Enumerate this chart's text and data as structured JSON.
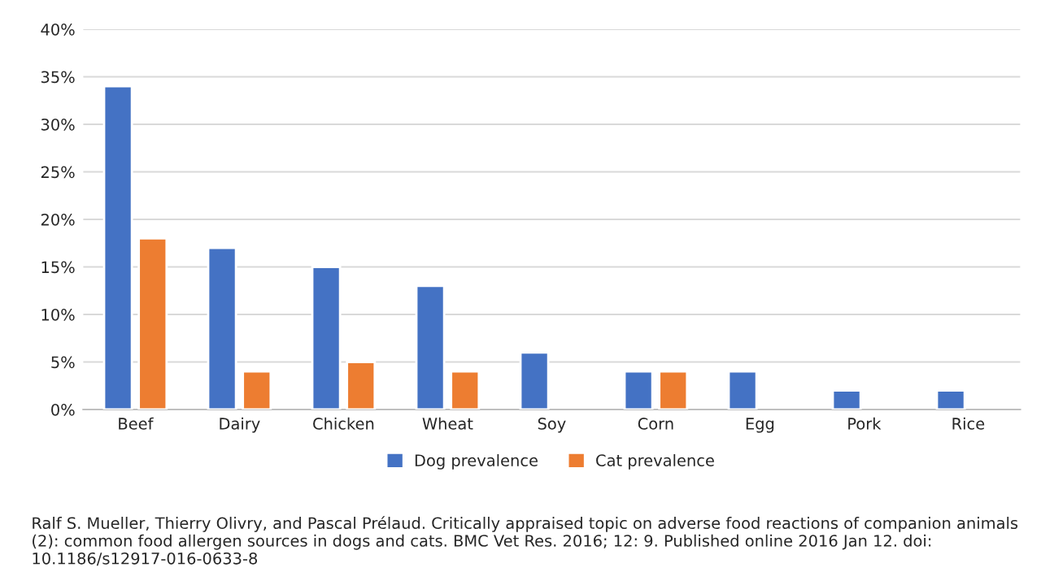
{
  "chart_data": {
    "type": "bar",
    "categories": [
      "Beef",
      "Dairy",
      "Chicken",
      "Wheat",
      "Soy",
      "Corn",
      "Egg",
      "Pork",
      "Rice"
    ],
    "series": [
      {
        "name": "Dog prevalence",
        "color": "#4472c4",
        "values": [
          34,
          17,
          15,
          13,
          6,
          4,
          4,
          2,
          2
        ]
      },
      {
        "name": "Cat prevalence",
        "color": "#ed7d31",
        "values": [
          18,
          4,
          5,
          4,
          null,
          4,
          null,
          null,
          null
        ]
      }
    ],
    "ylim": [
      0,
      40
    ],
    "yticks": [
      {
        "value": 0,
        "label": "0%"
      },
      {
        "value": 5,
        "label": "5%"
      },
      {
        "value": 10,
        "label": "10%"
      },
      {
        "value": 15,
        "label": "15%"
      },
      {
        "value": 20,
        "label": "20%"
      },
      {
        "value": 25,
        "label": "25%"
      },
      {
        "value": 30,
        "label": "30%"
      },
      {
        "value": 35,
        "label": "35%"
      },
      {
        "value": 40,
        "label": "40%"
      }
    ],
    "grid": "y",
    "legend": "bottom",
    "annotations": [
      "Ralf S. Mueller, Thierry Olivry, and Pascal Prélaud. Critically appraised topic on adverse food reactions of companion animals (2): common food allergen sources in dogs and cats. BMC Vet Res. 2016; 12: 9. Published online 2016 Jan 12. doi: 10.1186/s12917-016-0633-8"
    ]
  }
}
